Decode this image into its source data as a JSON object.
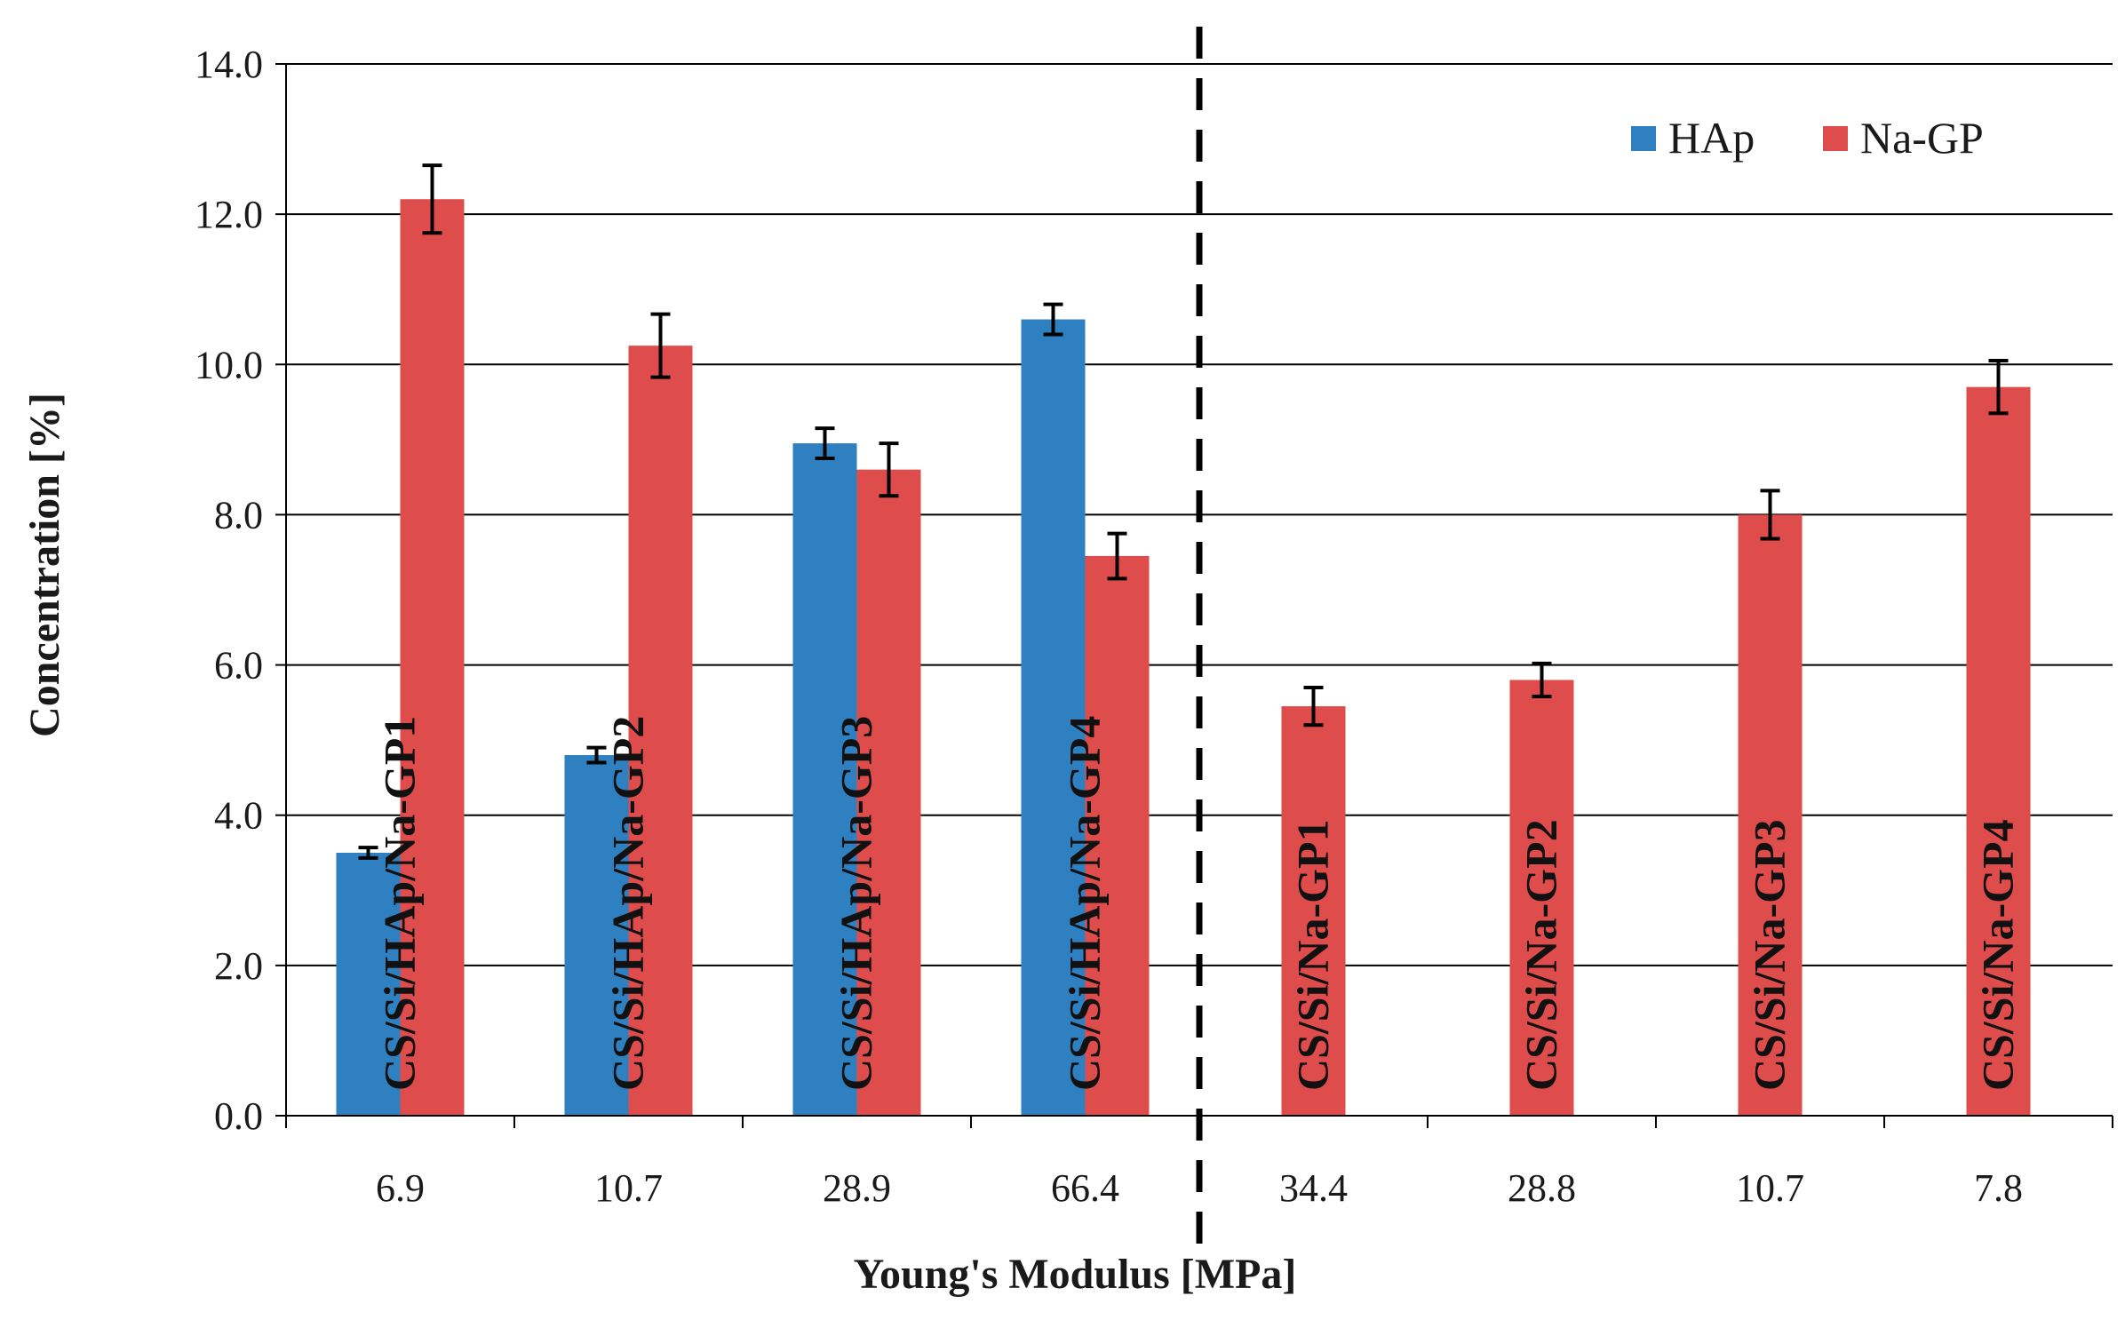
{
  "chart_data": {
    "type": "bar",
    "title": "",
    "xlabel": "Young's Modulus [MPa]",
    "ylabel": "Concentration [%]",
    "ylim": [
      0,
      14
    ],
    "ytick_step": 2,
    "yticks": [
      "0.0",
      "2.0",
      "4.0",
      "6.0",
      "8.0",
      "10.0",
      "12.0",
      "14.0"
    ],
    "grid": true,
    "legend_position": "top-right",
    "categories": [
      "6.9",
      "10.7",
      "28.9",
      "66.4",
      "34.4",
      "28.8",
      "10.7",
      "7.8"
    ],
    "group_labels": [
      "CS/Si/HAp/Na-GP1",
      "CS/Si/HAp/Na-GP2",
      "CS/Si/HAp/Na-GP3",
      "CS/Si/HAp/Na-GP4",
      "CS/Si/Na-GP1",
      "CS/Si/Na-GP2",
      "CS/Si/Na-GP3",
      "CS/Si/Na-GP4"
    ],
    "divider_after_category": 3,
    "series": [
      {
        "name": "HAp",
        "color": "#2f80c1",
        "values": [
          3.5,
          4.8,
          8.95,
          10.6,
          null,
          null,
          null,
          null
        ],
        "errors": [
          0.07,
          0.1,
          0.2,
          0.2,
          null,
          null,
          null,
          null
        ]
      },
      {
        "name": "Na-GP",
        "color": "#df4c4c",
        "values": [
          12.2,
          10.25,
          8.6,
          7.45,
          5.45,
          5.8,
          8.0,
          9.7
        ],
        "errors": [
          0.45,
          0.42,
          0.35,
          0.3,
          0.25,
          0.22,
          0.32,
          0.35
        ]
      }
    ]
  }
}
